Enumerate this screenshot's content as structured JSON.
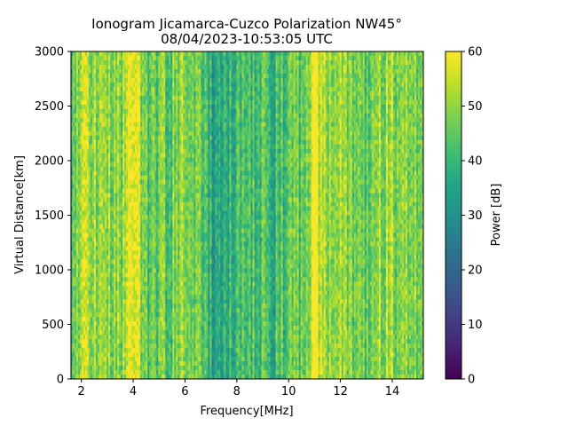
{
  "chart_data": {
    "type": "heatmap",
    "title": "Ionogram Jicamarca-Cuzco Polarization NW45°",
    "subtitle": "08/04/2023-10:53:05 UTC",
    "xlabel": "Frequency[MHz]",
    "ylabel": "Virtual Distance[km]",
    "xlim": [
      1.6,
      15.2
    ],
    "ylim": [
      0,
      3000
    ],
    "xticks": [
      2,
      4,
      6,
      8,
      10,
      12,
      14
    ],
    "yticks": [
      0,
      500,
      1000,
      1500,
      2000,
      2500,
      3000
    ],
    "colorbar": {
      "label": "Power [dB]",
      "min": 0,
      "max": 60,
      "ticks": [
        0,
        10,
        20,
        30,
        40,
        50,
        60
      ],
      "colormap": "viridis"
    },
    "column_mean_power_db": [
      {
        "freq_mhz": 1.6,
        "power_db": 50
      },
      {
        "freq_mhz": 2.0,
        "power_db": 52
      },
      {
        "freq_mhz": 2.5,
        "power_db": 50
      },
      {
        "freq_mhz": 3.0,
        "power_db": 52
      },
      {
        "freq_mhz": 3.5,
        "power_db": 46
      },
      {
        "freq_mhz": 4.0,
        "power_db": 57
      },
      {
        "freq_mhz": 4.5,
        "power_db": 46
      },
      {
        "freq_mhz": 5.0,
        "power_db": 44
      },
      {
        "freq_mhz": 5.5,
        "power_db": 47
      },
      {
        "freq_mhz": 6.0,
        "power_db": 52
      },
      {
        "freq_mhz": 6.5,
        "power_db": 45
      },
      {
        "freq_mhz": 7.0,
        "power_db": 38
      },
      {
        "freq_mhz": 7.5,
        "power_db": 37
      },
      {
        "freq_mhz": 8.0,
        "power_db": 42
      },
      {
        "freq_mhz": 8.5,
        "power_db": 40
      },
      {
        "freq_mhz": 9.0,
        "power_db": 43
      },
      {
        "freq_mhz": 9.5,
        "power_db": 40
      },
      {
        "freq_mhz": 10.0,
        "power_db": 44
      },
      {
        "freq_mhz": 10.5,
        "power_db": 45
      },
      {
        "freq_mhz": 11.0,
        "power_db": 58
      },
      {
        "freq_mhz": 11.5,
        "power_db": 53
      },
      {
        "freq_mhz": 12.0,
        "power_db": 50
      },
      {
        "freq_mhz": 12.5,
        "power_db": 48
      },
      {
        "freq_mhz": 13.0,
        "power_db": 45
      },
      {
        "freq_mhz": 13.5,
        "power_db": 49
      },
      {
        "freq_mhz": 14.0,
        "power_db": 51
      },
      {
        "freq_mhz": 14.5,
        "power_db": 48
      },
      {
        "freq_mhz": 15.2,
        "power_db": 46
      }
    ],
    "grid": false
  }
}
